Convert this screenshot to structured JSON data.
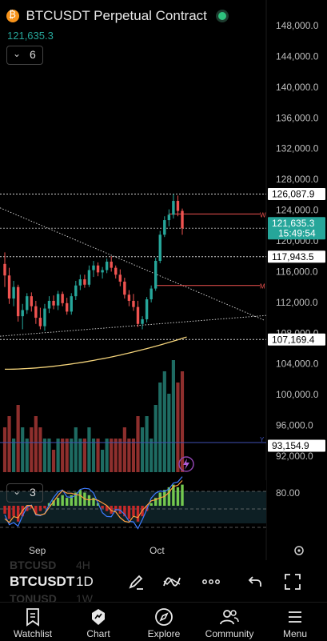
{
  "header": {
    "title": "BTCUSDT Perpetual Contract",
    "last_price": "121,635.3",
    "interval_indicator_count": "6"
  },
  "chart_data": {
    "type": "candlestick",
    "symbol": "BTCUSDT Perpetual Contract",
    "y_tick_labels": [
      "148,000.0",
      "144,000.0",
      "140,000.0",
      "136,000.0",
      "132,000.0",
      "128,000.0",
      "124,000.0",
      "120,000.0",
      "116,000.0",
      "112,000.0",
      "108,000.0",
      "104,000.0",
      "100,000.0",
      "96,000.0",
      "92,000.0"
    ],
    "ylim": [
      90000,
      150000
    ],
    "x_tick_labels": [
      "Sep",
      "Oct"
    ],
    "price_labels": [
      {
        "value": "126,087.9",
        "kind": "high",
        "color": "#ffffff"
      },
      {
        "value": "121,635.3",
        "time": "15:49:54",
        "kind": "last",
        "color": "#26a69a"
      },
      {
        "value": "117,943.5",
        "kind": "line",
        "color": "#ffffff"
      },
      {
        "value": "107,169.4",
        "kind": "ma",
        "color": "#ffffff"
      },
      {
        "value": "93,154.9",
        "kind": "volume",
        "color": "#ffffff"
      }
    ],
    "line_markers": [
      "W",
      "M"
    ],
    "candles": [
      [
        117000,
        118500,
        114000,
        115500
      ],
      [
        115500,
        116500,
        111800,
        112500
      ],
      [
        112500,
        114800,
        111500,
        114000
      ],
      [
        114000,
        114300,
        109500,
        110200
      ],
      [
        110200,
        111800,
        108500,
        111000
      ],
      [
        111000,
        113200,
        110500,
        112800
      ],
      [
        112800,
        113300,
        110800,
        111500
      ],
      [
        111500,
        112200,
        109200,
        110000
      ],
      [
        110000,
        111300,
        108500,
        108900
      ],
      [
        108900,
        111800,
        108300,
        111200
      ],
      [
        111200,
        112800,
        110600,
        112200
      ],
      [
        112200,
        112900,
        111100,
        111600
      ],
      [
        111600,
        113500,
        111000,
        113100
      ],
      [
        113100,
        113400,
        111500,
        111900
      ],
      [
        111900,
        112600,
        110400,
        110800
      ],
      [
        110800,
        113200,
        110400,
        112800
      ],
      [
        112800,
        114800,
        112300,
        114200
      ],
      [
        114200,
        115600,
        113600,
        115000
      ],
      [
        115000,
        115600,
        113900,
        114300
      ],
      [
        114300,
        116800,
        114000,
        116200
      ],
      [
        116200,
        117400,
        115300,
        116800
      ],
      [
        116800,
        117200,
        115400,
        115900
      ],
      [
        115900,
        116600,
        115100,
        116200
      ],
      [
        116200,
        117700,
        115800,
        117300
      ],
      [
        117300,
        118000,
        116000,
        116500
      ],
      [
        116500,
        116800,
        115100,
        115600
      ],
      [
        115600,
        116300,
        114100,
        114700
      ],
      [
        114700,
        115200,
        112500,
        113000
      ],
      [
        113000,
        113600,
        111500,
        112200
      ],
      [
        112200,
        113100,
        110900,
        111400
      ],
      [
        111400,
        112200,
        108800,
        109200
      ],
      [
        109200,
        110200,
        108500,
        109800
      ],
      [
        109800,
        112700,
        109400,
        112400
      ],
      [
        112400,
        114200,
        112000,
        113800
      ],
      [
        113800,
        117800,
        113500,
        117400
      ],
      [
        117400,
        121300,
        117100,
        120800
      ],
      [
        120800,
        123200,
        120500,
        122700
      ],
      [
        122700,
        124100,
        121900,
        123400
      ],
      [
        123400,
        126087.9,
        122900,
        125200
      ],
      [
        125200,
        125900,
        123200,
        123900
      ],
      [
        123900,
        124200,
        120800,
        121635.3
      ]
    ],
    "volume_axis_max": 104000,
    "volume": [
      [
        4,
        "d"
      ],
      [
        5,
        "d"
      ],
      [
        3,
        "u"
      ],
      [
        6,
        "d"
      ],
      [
        4,
        "u"
      ],
      [
        3,
        "u"
      ],
      [
        4,
        "d"
      ],
      [
        5,
        "d"
      ],
      [
        4,
        "d"
      ],
      [
        3,
        "u"
      ],
      [
        3,
        "u"
      ],
      [
        2,
        "d"
      ],
      [
        3,
        "u"
      ],
      [
        3,
        "d"
      ],
      [
        3,
        "d"
      ],
      [
        3,
        "u"
      ],
      [
        4,
        "u"
      ],
      [
        3,
        "u"
      ],
      [
        3,
        "d"
      ],
      [
        4,
        "u"
      ],
      [
        3,
        "u"
      ],
      [
        3,
        "d"
      ],
      [
        2,
        "u"
      ],
      [
        3,
        "u"
      ],
      [
        3,
        "d"
      ],
      [
        3,
        "d"
      ],
      [
        3,
        "d"
      ],
      [
        4,
        "d"
      ],
      [
        3,
        "d"
      ],
      [
        3,
        "d"
      ],
      [
        5,
        "d"
      ],
      [
        4,
        "u"
      ],
      [
        5,
        "u"
      ],
      [
        3,
        "u"
      ],
      [
        6,
        "u"
      ],
      [
        8,
        "u"
      ],
      [
        9,
        "u"
      ],
      [
        7,
        "u"
      ],
      [
        10,
        "u"
      ],
      [
        8,
        "d"
      ],
      [
        9,
        "d"
      ]
    ],
    "oscillator": {
      "level_label": "80.00",
      "histogram": [
        -3,
        -5,
        -4,
        -6,
        -4,
        -2,
        -1,
        -3,
        -2,
        -1,
        1,
        2,
        3,
        4,
        3,
        4,
        5,
        6,
        5,
        4,
        3,
        1,
        -1,
        -2,
        -3,
        -2,
        -3,
        -4,
        -5,
        -4,
        -6,
        -4,
        -2,
        1,
        3,
        5,
        6,
        7,
        8,
        7,
        8
      ]
    },
    "colors": {
      "up": "#26a69a",
      "down": "#ef5350",
      "ma": "#f2d27a",
      "volume_up": "#1e6b62",
      "volume_down": "#8e2f2d",
      "osc_up": "#74c94f",
      "osc_down": "#c62828"
    }
  },
  "oscillator_box": {
    "count": "3"
  },
  "toolbar": {
    "symbol": "BTCUSDT",
    "symbol_ghost_top": "BTCUSD",
    "symbol_ghost_bottom": "TONUSD",
    "timeframe": "1D",
    "timeframe_ghost_top": "4H",
    "timeframe_ghost_bottom": "1W"
  },
  "nav": {
    "watchlist": "Watchlist",
    "chart": "Chart",
    "explore": "Explore",
    "community": "Community",
    "menu": "Menu"
  }
}
